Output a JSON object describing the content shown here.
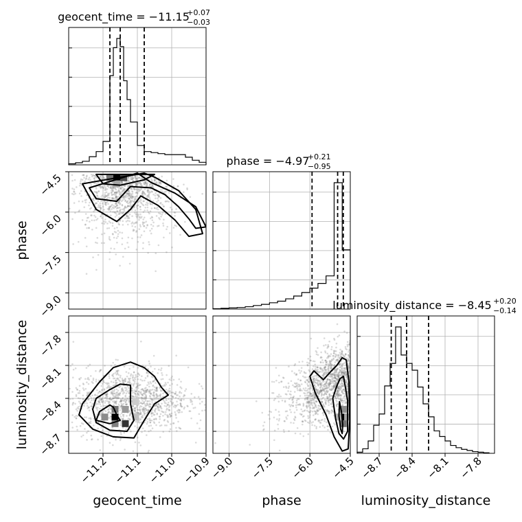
{
  "chart_data": {
    "type": "scatter",
    "chart_kind": "corner",
    "parameters": [
      "geocent_time",
      "phase",
      "luminosity_distance"
    ],
    "axis_labels": {
      "geocent_time": "geocent_time",
      "phase": "phase",
      "luminosity_distance": "luminosity_distance"
    },
    "ranges": {
      "geocent_time": [
        -11.3,
        -10.9
      ],
      "phase": [
        -9.6,
        -4.5
      ],
      "luminosity_distance": [
        -8.9,
        -7.65
      ]
    },
    "ticks": {
      "geocent_time": {
        "values": [
          -11.2,
          -11.1,
          -11.0,
          -10.9
        ],
        "labels": [
          "−11.2",
          "−11.1",
          "−11.0",
          "−10.9"
        ]
      },
      "phase": {
        "values": [
          -9.0,
          -7.5,
          -6.0,
          -4.5
        ],
        "labels": [
          "−9.0",
          "−7.5",
          "−6.0",
          "−4.5"
        ]
      },
      "luminosity_distance": {
        "values": [
          -8.7,
          -8.4,
          -8.1,
          -7.8
        ],
        "labels": [
          "−8.7",
          "−8.4",
          "−8.1",
          "−7.8"
        ]
      }
    },
    "grid": true,
    "titles": [
      {
        "param": "geocent_time",
        "text": "geocent_time = −11.15",
        "plus": "+0.07",
        "minus": "−0.03"
      },
      {
        "param": "phase",
        "text": "phase = −4.97",
        "plus": "+0.21",
        "minus": "−0.95"
      },
      {
        "param": "luminosity_distance",
        "text": "luminosity_distance = −8.45",
        "plus": "+0.20",
        "minus": "−0.14"
      }
    ],
    "quantiles": {
      "geocent_time": [
        -11.18,
        -11.15,
        -11.08
      ],
      "phase": [
        -5.92,
        -4.97,
        -4.76
      ],
      "luminosity_distance": [
        -8.59,
        -8.45,
        -8.25
      ]
    },
    "histograms": {
      "geocent_time": {
        "edges": [
          -11.3,
          -11.28,
          -11.26,
          -11.24,
          -11.22,
          -11.2,
          -11.18,
          -11.17,
          -11.16,
          -11.15,
          -11.14,
          -11.13,
          -11.12,
          -11.1,
          -11.08,
          -11.06,
          -11.04,
          -11.02,
          -11.0,
          -10.98,
          -10.96,
          -10.94,
          -10.92,
          -10.9
        ],
        "counts": [
          2,
          4,
          7,
          16,
          26,
          46,
          175,
          230,
          248,
          232,
          165,
          128,
          84,
          38,
          26,
          24,
          22,
          20,
          20,
          20,
          15,
          9,
          5
        ]
      },
      "phase": {
        "edges": [
          -9.6,
          -9.3,
          -9.0,
          -8.7,
          -8.4,
          -8.1,
          -7.8,
          -7.5,
          -7.2,
          -6.9,
          -6.6,
          -6.3,
          -6.0,
          -5.7,
          -5.4,
          -5.1,
          -4.8,
          -4.5
        ],
        "counts": [
          1,
          2,
          3,
          4,
          6,
          9,
          12,
          16,
          20,
          26,
          33,
          42,
          53,
          65,
          84,
          320,
          150
        ]
      },
      "luminosity_distance": {
        "edges": [
          -8.9,
          -8.85,
          -8.8,
          -8.75,
          -8.7,
          -8.65,
          -8.6,
          -8.55,
          -8.5,
          -8.45,
          -8.4,
          -8.35,
          -8.3,
          -8.25,
          -8.2,
          -8.15,
          -8.1,
          -8.05,
          -8.0,
          -7.95,
          -7.9,
          -7.85,
          -7.8,
          -7.75,
          -7.7
        ],
        "counts": [
          2,
          8,
          22,
          50,
          70,
          120,
          160,
          225,
          175,
          160,
          148,
          118,
          88,
          65,
          40,
          30,
          22,
          14,
          10,
          7,
          5,
          3,
          2,
          1
        ]
      }
    },
    "samples": {
      "time_phase": {
        "center": [
          -11.14,
          -6.2
        ],
        "spread": [
          0.05,
          1.0
        ],
        "count": 1200
      },
      "time_distance": {
        "center": [
          -11.12,
          -8.42
        ],
        "spread": [
          0.06,
          0.15
        ],
        "count": 1300
      },
      "phase_distance": {
        "center": [
          -5.5,
          -8.3
        ],
        "spread": [
          0.9,
          0.16
        ],
        "count": 1300
      }
    },
    "contours": {
      "time_phase": [
        [
          [
            -11.22,
            -4.6
          ],
          [
            -11.2,
            -4.95
          ],
          [
            -11.15,
            -5.0
          ],
          [
            -11.08,
            -4.8
          ],
          [
            -11.05,
            -4.6
          ]
        ],
        [
          [
            -11.24,
            -5.1
          ],
          [
            -11.22,
            -5.5
          ],
          [
            -11.16,
            -5.6
          ],
          [
            -11.12,
            -5.05
          ],
          [
            -11.06,
            -5.1
          ],
          [
            -11.02,
            -5.35
          ],
          [
            -10.98,
            -5.8
          ],
          [
            -10.95,
            -6.25
          ],
          [
            -10.93,
            -6.6
          ],
          [
            -10.9,
            -6.55
          ],
          [
            -10.93,
            -5.8
          ],
          [
            -10.99,
            -5.3
          ],
          [
            -11.06,
            -4.9
          ],
          [
            -11.1,
            -4.55
          ]
        ],
        [
          [
            -11.26,
            -4.95
          ],
          [
            -11.22,
            -5.9
          ],
          [
            -11.16,
            -6.35
          ],
          [
            -11.12,
            -5.9
          ],
          [
            -11.09,
            -5.4
          ],
          [
            -11.04,
            -5.75
          ],
          [
            -10.99,
            -6.3
          ],
          [
            -10.95,
            -6.9
          ],
          [
            -10.91,
            -6.8
          ],
          [
            -10.93,
            -5.9
          ],
          [
            -10.98,
            -5.2
          ],
          [
            -11.05,
            -4.7
          ],
          [
            -11.08,
            -4.55
          ]
        ]
      ],
      "time_distance": [
        [
          [
            -11.17,
            -8.48
          ],
          [
            -11.16,
            -8.55
          ],
          [
            -11.15,
            -8.6
          ],
          [
            -11.18,
            -8.63
          ],
          [
            -11.22,
            -8.6
          ],
          [
            -11.21,
            -8.52
          ],
          [
            -11.18,
            -8.46
          ]
        ],
        [
          [
            -11.22,
            -8.4
          ],
          [
            -11.23,
            -8.5
          ],
          [
            -11.22,
            -8.62
          ],
          [
            -11.18,
            -8.69
          ],
          [
            -11.13,
            -8.7
          ],
          [
            -11.11,
            -8.6
          ],
          [
            -11.12,
            -8.45
          ],
          [
            -11.12,
            -8.28
          ],
          [
            -11.15,
            -8.27
          ],
          [
            -11.18,
            -8.32
          ]
        ],
        [
          [
            -11.26,
            -8.45
          ],
          [
            -11.27,
            -8.55
          ],
          [
            -11.23,
            -8.68
          ],
          [
            -11.17,
            -8.75
          ],
          [
            -11.11,
            -8.76
          ],
          [
            -11.08,
            -8.6
          ],
          [
            -11.05,
            -8.45
          ],
          [
            -11.01,
            -8.37
          ],
          [
            -11.03,
            -8.3
          ],
          [
            -11.05,
            -8.2
          ],
          [
            -11.08,
            -8.12
          ],
          [
            -11.12,
            -8.07
          ],
          [
            -11.17,
            -8.12
          ],
          [
            -11.21,
            -8.25
          ]
        ]
      ],
      "phase_distance": [
        [
          [
            -4.9,
            -8.43
          ],
          [
            -4.83,
            -8.52
          ],
          [
            -4.78,
            -8.64
          ],
          [
            -4.8,
            -8.72
          ],
          [
            -4.86,
            -8.68
          ],
          [
            -4.92,
            -8.56
          ]
        ],
        [
          [
            -5.15,
            -8.4
          ],
          [
            -5.02,
            -8.3
          ],
          [
            -4.88,
            -8.22
          ],
          [
            -4.75,
            -8.2
          ],
          [
            -4.6,
            -8.42
          ],
          [
            -4.6,
            -8.7
          ],
          [
            -4.75,
            -8.77
          ],
          [
            -4.92,
            -8.72
          ],
          [
            -5.05,
            -8.58
          ]
        ],
        [
          [
            -5.5,
            -8.23
          ],
          [
            -5.2,
            -8.15
          ],
          [
            -5.0,
            -8.1
          ],
          [
            -4.8,
            -8.03
          ],
          [
            -4.65,
            -8.05
          ],
          [
            -4.55,
            -8.25
          ],
          [
            -4.52,
            -8.6
          ],
          [
            -4.58,
            -8.86
          ],
          [
            -4.8,
            -8.88
          ],
          [
            -5.1,
            -8.75
          ],
          [
            -5.4,
            -8.55
          ],
          [
            -5.8,
            -8.35
          ],
          [
            -6.0,
            -8.2
          ],
          [
            -5.85,
            -8.15
          ]
        ]
      ]
    },
    "density_cells": {
      "time_phase": [
        [
          -11.16,
          -4.72,
          1.0
        ],
        [
          -11.14,
          -4.72,
          0.7
        ],
        [
          -11.18,
          -4.72,
          0.55
        ],
        [
          -11.16,
          -4.95,
          0.35
        ]
      ],
      "time_distance": [
        [
          -11.165,
          -8.57,
          1.0
        ],
        [
          -11.135,
          -8.63,
          0.8
        ],
        [
          -11.165,
          -8.5,
          0.55
        ],
        [
          -11.195,
          -8.57,
          0.45
        ],
        [
          -11.135,
          -8.5,
          0.4
        ],
        [
          -11.165,
          -8.63,
          0.5
        ],
        [
          -11.105,
          -8.43,
          0.2
        ],
        [
          -11.105,
          -8.57,
          0.25
        ]
      ],
      "phase_distance": [
        [
          -4.76,
          -8.57,
          1.0
        ],
        [
          -4.76,
          -8.63,
          0.55
        ],
        [
          -4.76,
          -8.5,
          0.45
        ],
        [
          -4.6,
          -8.57,
          0.35
        ],
        [
          -4.92,
          -8.57,
          0.3
        ]
      ]
    }
  }
}
